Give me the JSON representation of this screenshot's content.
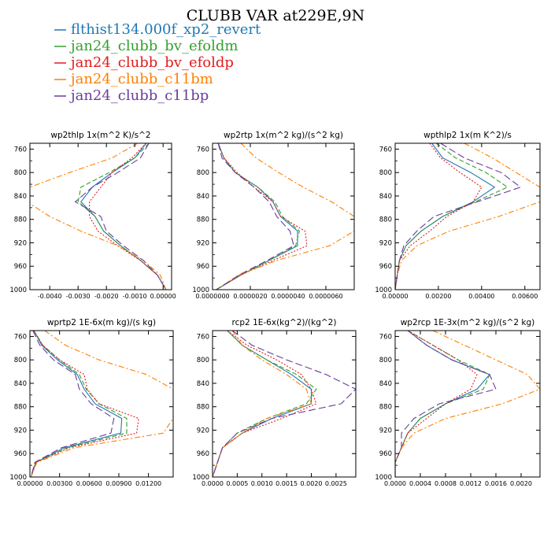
{
  "figure": {
    "title": "CLUBB VAR at229E,9N",
    "legend_placement": "top-left",
    "legend": [
      {
        "label": "flthist134.000f_xp2_revert",
        "color": "#1f78b4",
        "dash": "solid"
      },
      {
        "label": "jan24_clubb_bv_efoldm",
        "color": "#33a02c",
        "dash": "dashed"
      },
      {
        "label": "jan24_clubb_bv_efoldp",
        "color": "#e31a1c",
        "dash": "dotted"
      },
      {
        "label": "jan24_clubb_c11bm",
        "color": "#ff7f00",
        "dash": "dashdot"
      },
      {
        "label": "jan24_clubb_c11bp",
        "color": "#6a3d9a",
        "dash": "longdash"
      }
    ]
  },
  "chart_data": [
    {
      "type": "line",
      "title": "wp2thlp  1x(m^2 K)/s^2",
      "y": [
        750,
        775,
        800,
        825,
        850,
        875,
        900,
        925,
        950,
        975,
        1000
      ],
      "ylim": [
        1000,
        750
      ],
      "xlim": [
        -0.0047,
        0.0003
      ],
      "yticks": [
        760,
        800,
        840,
        880,
        920,
        960,
        1000
      ],
      "xticks": [
        {
          "v": -0.004,
          "label": "-0.0040"
        },
        {
          "v": -0.003,
          "label": "-0.0030"
        },
        {
          "v": -0.002,
          "label": "-0.0020"
        },
        {
          "v": -0.001,
          "label": "-0.0010"
        },
        {
          "v": 0.0,
          "label": "0.00000"
        }
      ],
      "series": [
        {
          "name": "flthist134.000f_xp2_revert",
          "values": [
            -0.0006,
            -0.001,
            -0.0018,
            -0.0025,
            -0.0029,
            -0.0024,
            -0.0021,
            -0.0015,
            -0.0008,
            -0.0002,
            0.0001
          ]
        },
        {
          "name": "jan24_clubb_bv_efoldm",
          "values": [
            -0.0005,
            -0.001,
            -0.0019,
            -0.0029,
            -0.003,
            -0.0024,
            -0.0021,
            -0.0015,
            -0.0008,
            -0.0002,
            0.0001
          ]
        },
        {
          "name": "jan24_clubb_bv_efoldp",
          "values": [
            -0.0006,
            -0.0011,
            -0.0018,
            -0.0022,
            -0.0026,
            -0.0026,
            -0.0023,
            -0.0016,
            -0.0008,
            -0.0002,
            0.0001
          ]
        },
        {
          "name": "jan24_clubb_c11bm",
          "values": [
            -0.0009,
            -0.0018,
            -0.0033,
            -0.0047,
            -0.0048,
            -0.004,
            -0.0029,
            -0.0016,
            -0.0007,
            -0.0001,
            0.0001
          ]
        },
        {
          "name": "jan24_clubb_c11bp",
          "values": [
            -0.0005,
            -0.0008,
            -0.0016,
            -0.0025,
            -0.0031,
            -0.0022,
            -0.002,
            -0.0014,
            -0.0007,
            -0.0002,
            0.0001
          ]
        }
      ]
    },
    {
      "type": "line",
      "title": "wp2rtp   1x(m^2 kg)/(s^2 kg)",
      "y": [
        750,
        775,
        800,
        825,
        850,
        875,
        900,
        925,
        950,
        975,
        1000
      ],
      "ylim": [
        1000,
        750
      ],
      "xlim": [
        0.0,
        7.5e-06
      ],
      "yticks": [
        760,
        800,
        840,
        880,
        920,
        960,
        1000
      ],
      "xticks": [
        {
          "v": 0.0,
          "label": "0.0000000"
        },
        {
          "v": 2e-06,
          "label": "0.0000020"
        },
        {
          "v": 4e-06,
          "label": "0.0000040"
        },
        {
          "v": 6e-06,
          "label": "0.0000060"
        }
      ],
      "series": [
        {
          "name": "flthist134.000f_xp2_revert",
          "values": [
            3e-07,
            6e-07,
            1.2e-06,
            2.4e-06,
            3.2e-06,
            3.6e-06,
            4.5e-06,
            4.5e-06,
            3e-06,
            1.5e-06,
            2e-07
          ]
        },
        {
          "name": "jan24_clubb_bv_efoldm",
          "values": [
            3e-07,
            6e-07,
            1.2e-06,
            2.4e-06,
            3.3e-06,
            3.7e-06,
            4.6e-06,
            4.4e-06,
            3e-06,
            1.5e-06,
            2e-07
          ]
        },
        {
          "name": "jan24_clubb_bv_efoldp",
          "values": [
            3e-07,
            6e-07,
            1.3e-06,
            2.2e-06,
            3.2e-06,
            3.6e-06,
            4.9e-06,
            5e-06,
            3.2e-06,
            1.5e-06,
            2e-07
          ]
        },
        {
          "name": "jan24_clubb_c11bm",
          "values": [
            1.5e-06,
            2.3e-06,
            3.5e-06,
            4.8e-06,
            6.3e-06,
            7.5e-06,
            7.5e-06,
            6.2e-06,
            3.4e-06,
            1.4e-06,
            2e-07
          ]
        },
        {
          "name": "jan24_clubb_c11bp",
          "values": [
            3e-07,
            5e-07,
            1.2e-06,
            2.2e-06,
            3e-06,
            3.4e-06,
            4.1e-06,
            4.3e-06,
            2.9e-06,
            1.4e-06,
            2e-07
          ]
        }
      ]
    },
    {
      "type": "line",
      "title": "wpthlp2  1x(m K^2)/s",
      "y": [
        750,
        775,
        800,
        825,
        850,
        875,
        900,
        925,
        950,
        975,
        1000
      ],
      "ylim": [
        1000,
        750
      ],
      "xlim": [
        0.0,
        0.0067
      ],
      "yticks": [
        760,
        800,
        840,
        880,
        920,
        960,
        1000
      ],
      "xticks": [
        {
          "v": 0.0,
          "label": "0.00000"
        },
        {
          "v": 0.002,
          "label": "0.00200"
        },
        {
          "v": 0.004,
          "label": "0.00400"
        },
        {
          "v": 0.006,
          "label": "0.00600"
        }
      ],
      "series": [
        {
          "name": "flthist134.000f_xp2_revert",
          "values": [
            0.0017,
            0.0022,
            0.0035,
            0.0046,
            0.0036,
            0.0022,
            0.0012,
            0.0005,
            0.0002,
            0.0001,
            0.0
          ]
        },
        {
          "name": "jan24_clubb_bv_efoldm",
          "values": [
            0.0019,
            0.0028,
            0.0042,
            0.0052,
            0.0037,
            0.0022,
            0.0012,
            0.0005,
            0.0002,
            0.0001,
            0.0
          ]
        },
        {
          "name": "jan24_clubb_bv_efoldp",
          "values": [
            0.0016,
            0.0021,
            0.003,
            0.004,
            0.0036,
            0.0024,
            0.0016,
            0.0007,
            0.0002,
            0.0001,
            0.0
          ]
        },
        {
          "name": "jan24_clubb_c11bm",
          "values": [
            0.0032,
            0.0045,
            0.0056,
            0.0067,
            0.0067,
            0.0048,
            0.0025,
            0.001,
            0.0003,
            0.0001,
            0.0
          ]
        },
        {
          "name": "jan24_clubb_c11bp",
          "values": [
            0.0021,
            0.0032,
            0.0049,
            0.0058,
            0.0038,
            0.0018,
            0.001,
            0.0004,
            0.0002,
            0.0001,
            0.0
          ]
        }
      ]
    },
    {
      "type": "line",
      "title": "wprtp2   1E-6x(m kg)/(s kg)",
      "y": [
        750,
        775,
        800,
        825,
        850,
        875,
        900,
        925,
        950,
        975,
        1000
      ],
      "ylim": [
        1000,
        750
      ],
      "xlim": [
        0.0,
        0.0145
      ],
      "yticks": [
        760,
        800,
        840,
        880,
        920,
        960,
        1000
      ],
      "xticks": [
        {
          "v": 0.0,
          "label": "0.00000"
        },
        {
          "v": 0.003,
          "label": "0.00300"
        },
        {
          "v": 0.006,
          "label": "0.00600"
        },
        {
          "v": 0.009,
          "label": "0.00900"
        },
        {
          "v": 0.012,
          "label": "0.01200"
        }
      ],
      "series": [
        {
          "name": "flthist134.000f_xp2_revert",
          "values": [
            0.0004,
            0.0012,
            0.0028,
            0.0048,
            0.0055,
            0.0066,
            0.0093,
            0.0092,
            0.0035,
            0.0006,
            0.0001
          ]
        },
        {
          "name": "jan24_clubb_bv_efoldm",
          "values": [
            0.0004,
            0.0013,
            0.003,
            0.005,
            0.0057,
            0.007,
            0.0098,
            0.0098,
            0.0038,
            0.0006,
            0.0001
          ]
        },
        {
          "name": "jan24_clubb_bv_efoldp",
          "values": [
            0.0004,
            0.0013,
            0.003,
            0.0055,
            0.0058,
            0.007,
            0.011,
            0.0108,
            0.004,
            0.0006,
            0.0001
          ]
        },
        {
          "name": "jan24_clubb_c11bm",
          "values": [
            0.0015,
            0.0036,
            0.007,
            0.0118,
            0.0145,
            0.0145,
            0.0145,
            0.0135,
            0.0045,
            0.0007,
            0.0001
          ]
        },
        {
          "name": "jan24_clubb_c11bp",
          "values": [
            0.0003,
            0.001,
            0.0024,
            0.0046,
            0.005,
            0.0062,
            0.0085,
            0.0082,
            0.0032,
            0.0005,
            0.0001
          ]
        }
      ]
    },
    {
      "type": "line",
      "title": "rcp2   1E-6x(kg^2)/(kg^2)",
      "y": [
        750,
        775,
        800,
        825,
        850,
        875,
        900,
        925,
        950,
        975,
        1000
      ],
      "ylim": [
        1000,
        750
      ],
      "xlim": [
        0.0,
        0.0029
      ],
      "yticks": [
        760,
        800,
        840,
        880,
        920,
        960,
        1000
      ],
      "xticks": [
        {
          "v": 0.0,
          "label": "0.0000"
        },
        {
          "v": 0.0005,
          "label": "0.0005"
        },
        {
          "v": 0.001,
          "label": "0.0010"
        },
        {
          "v": 0.0015,
          "label": "0.0015"
        },
        {
          "v": 0.002,
          "label": "0.0020"
        },
        {
          "v": 0.0025,
          "label": "0.0025"
        }
      ],
      "series": [
        {
          "name": "flthist134.000f_xp2_revert",
          "values": [
            0.0003,
            0.0006,
            0.0011,
            0.0016,
            0.002,
            0.002,
            0.0012,
            0.0006,
            0.0002,
            0.0001,
            0.0
          ]
        },
        {
          "name": "jan24_clubb_bv_efoldm",
          "values": [
            0.0003,
            0.0006,
            0.0011,
            0.0017,
            0.0021,
            0.0019,
            0.0011,
            0.0005,
            0.0002,
            0.0001,
            0.0
          ]
        },
        {
          "name": "jan24_clubb_bv_efoldp",
          "values": [
            0.0003,
            0.0007,
            0.0013,
            0.0018,
            0.002,
            0.0021,
            0.0014,
            0.0006,
            0.0002,
            0.0001,
            0.0
          ]
        },
        {
          "name": "jan24_clubb_c11bm",
          "values": [
            0.0004,
            0.0006,
            0.001,
            0.0015,
            0.0019,
            0.002,
            0.0011,
            0.0006,
            0.0002,
            0.0001,
            0.0
          ]
        },
        {
          "name": "jan24_clubb_c11bp",
          "values": [
            0.0004,
            0.0008,
            0.0015,
            0.0023,
            0.0029,
            0.0026,
            0.0012,
            0.0005,
            0.0002,
            0.0001,
            0.0
          ]
        }
      ]
    },
    {
      "type": "line",
      "title": "wp2rcp   1E-3x(m^2 kg)/(s^2 kg)",
      "y": [
        750,
        775,
        800,
        825,
        850,
        875,
        900,
        925,
        950,
        975,
        1000
      ],
      "ylim": [
        1000,
        750
      ],
      "xlim": [
        0.0,
        0.0023
      ],
      "yticks": [
        760,
        800,
        840,
        880,
        920,
        960,
        1000
      ],
      "xticks": [
        {
          "v": 0.0,
          "label": "0.0000"
        },
        {
          "v": 0.0004,
          "label": "0.0004"
        },
        {
          "v": 0.0008,
          "label": "0.0008"
        },
        {
          "v": 0.0012,
          "label": "0.0012"
        },
        {
          "v": 0.0016,
          "label": "0.0016"
        },
        {
          "v": 0.002,
          "label": "0.0020"
        }
      ],
      "series": [
        {
          "name": "flthist134.000f_xp2_revert",
          "values": [
            0.0002,
            0.0005,
            0.0009,
            0.0015,
            0.0013,
            0.0008,
            0.0004,
            0.0002,
            0.0001,
            0.0,
            0.0
          ]
        },
        {
          "name": "jan24_clubb_bv_efoldm",
          "values": [
            0.0002,
            0.0006,
            0.001,
            0.0015,
            0.0014,
            0.0008,
            0.0004,
            0.0002,
            0.0001,
            0.0,
            0.0
          ]
        },
        {
          "name": "jan24_clubb_bv_efoldp",
          "values": [
            0.0002,
            0.0006,
            0.001,
            0.0013,
            0.0012,
            0.0008,
            0.0005,
            0.0002,
            0.0001,
            0.0,
            0.0
          ]
        },
        {
          "name": "jan24_clubb_c11bm",
          "values": [
            0.0006,
            0.0011,
            0.0016,
            0.0021,
            0.0023,
            0.0017,
            0.0008,
            0.0003,
            0.0001,
            0.0,
            0.0
          ]
        },
        {
          "name": "jan24_clubb_c11bp",
          "values": [
            0.0002,
            0.0005,
            0.0009,
            0.0015,
            0.0016,
            0.0007,
            0.0003,
            0.0001,
            0.0001,
            0.0,
            0.0
          ]
        }
      ]
    }
  ]
}
